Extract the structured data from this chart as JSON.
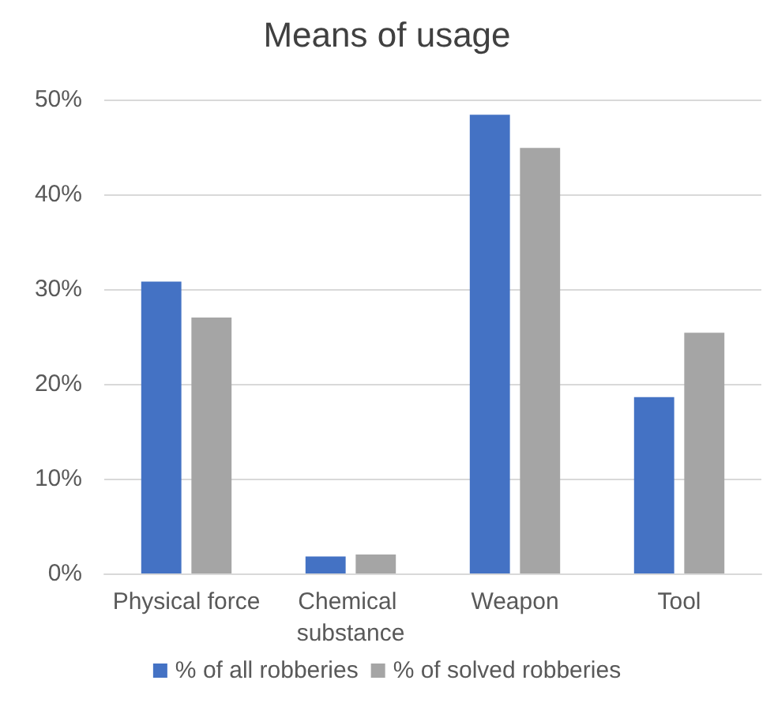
{
  "chart_data": {
    "type": "bar",
    "title": "Means of usage",
    "categories": [
      "Physical force",
      "Chemical substance",
      "Weapon",
      "Tool"
    ],
    "series": [
      {
        "name": "% of all robberies",
        "color": "#4472c4",
        "values": [
          30.8,
          1.8,
          48.4,
          18.6
        ]
      },
      {
        "name": "% of solved robberies",
        "color": "#a5a5a5",
        "values": [
          27.0,
          2.0,
          44.9,
          25.4
        ]
      }
    ],
    "ylim": [
      0,
      50
    ],
    "yticks": [
      {
        "value": 0,
        "label": "0%"
      },
      {
        "value": 10,
        "label": "10%"
      },
      {
        "value": 20,
        "label": "20%"
      },
      {
        "value": 30,
        "label": "30%"
      },
      {
        "value": 40,
        "label": "40%"
      },
      {
        "value": 50,
        "label": "50%"
      }
    ],
    "grid": "y",
    "legend": "bottom"
  }
}
